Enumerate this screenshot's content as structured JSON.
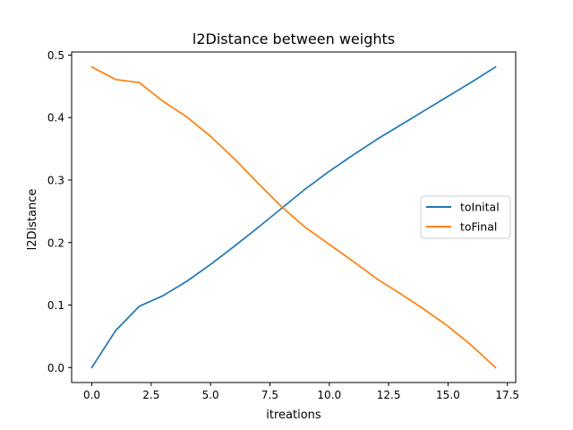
{
  "chart_data": {
    "type": "line",
    "title": "l2Distance between weights",
    "xlabel": "itreations",
    "ylabel": "l2Distance",
    "xlim": [
      -0.85,
      17.85
    ],
    "ylim": [
      -0.024,
      0.505
    ],
    "xticks": [
      0.0,
      2.5,
      5.0,
      7.5,
      10.0,
      12.5,
      15.0,
      17.5
    ],
    "xtick_labels": [
      "0.0",
      "2.5",
      "5.0",
      "7.5",
      "10.0",
      "12.5",
      "15.0",
      "17.5"
    ],
    "yticks": [
      0.0,
      0.1,
      0.2,
      0.3,
      0.4,
      0.5
    ],
    "ytick_labels": [
      "0.0",
      "0.1",
      "0.2",
      "0.3",
      "0.4",
      "0.5"
    ],
    "grid": false,
    "legend_position": "center-right",
    "x": [
      0,
      1,
      2,
      3,
      4,
      5,
      6,
      7,
      8,
      9,
      10,
      11,
      12,
      13,
      14,
      15,
      16,
      17
    ],
    "series": [
      {
        "name": "toInital",
        "color": "#1f77b4",
        "values": [
          0.0,
          0.059,
          0.098,
          0.115,
          0.138,
          0.165,
          0.194,
          0.224,
          0.255,
          0.286,
          0.314,
          0.34,
          0.365,
          0.388,
          0.411,
          0.434,
          0.457,
          0.481
        ]
      },
      {
        "name": "toFinal",
        "color": "#ff7f0e",
        "values": [
          0.481,
          0.461,
          0.456,
          0.426,
          0.401,
          0.37,
          0.334,
          0.295,
          0.257,
          0.224,
          0.197,
          0.17,
          0.142,
          0.118,
          0.093,
          0.066,
          0.035,
          0.0
        ]
      }
    ]
  }
}
